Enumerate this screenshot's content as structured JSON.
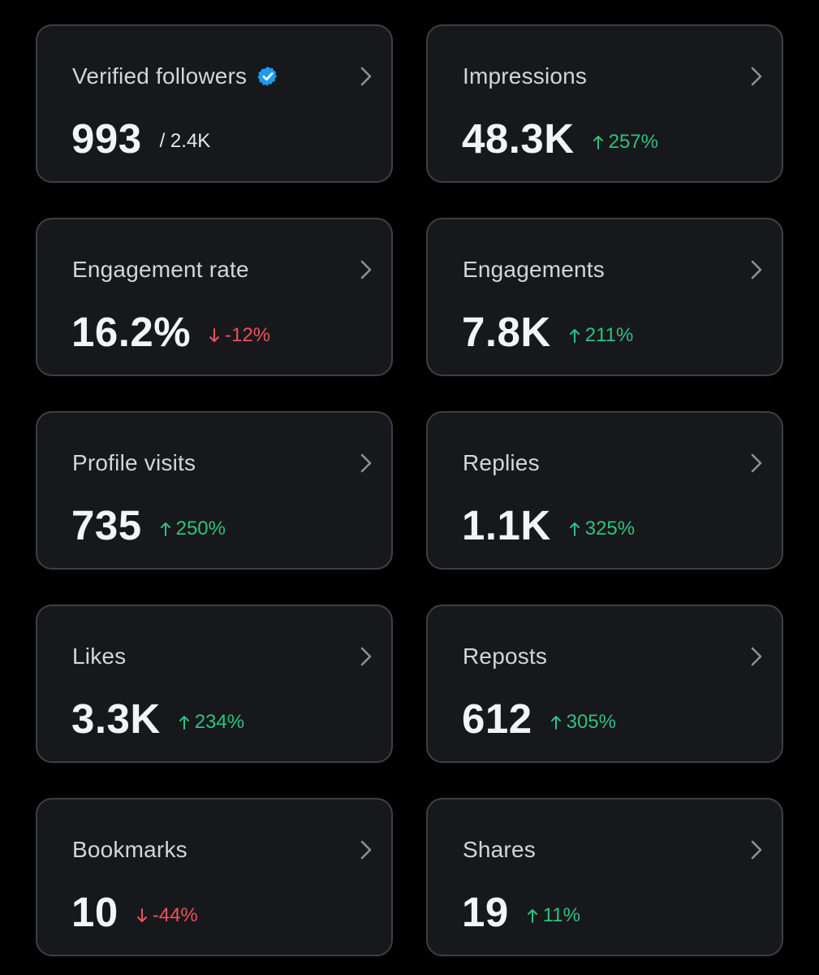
{
  "colors": {
    "background": "#000000",
    "card": "#16181c",
    "card_border": "#3c4044",
    "label": "#d2d6da",
    "value": "#f2f4f6",
    "positive": "#2ec27e",
    "negative": "#f0515c",
    "verified_badge": "#1d9bf0"
  },
  "cards": [
    {
      "label": "Verified followers",
      "value": "993",
      "total": "/ 2.4K",
      "icon": "verified-badge-icon"
    },
    {
      "label": "Impressions",
      "value": "48.3K",
      "change": "257%",
      "direction": "up"
    },
    {
      "label": "Engagement rate",
      "value": "16.2%",
      "change": "-12%",
      "direction": "down"
    },
    {
      "label": "Engagements",
      "value": "7.8K",
      "change": "211%",
      "direction": "up"
    },
    {
      "label": "Profile visits",
      "value": "735",
      "change": "250%",
      "direction": "up"
    },
    {
      "label": "Replies",
      "value": "1.1K",
      "change": "325%",
      "direction": "up"
    },
    {
      "label": "Likes",
      "value": "3.3K",
      "change": "234%",
      "direction": "up"
    },
    {
      "label": "Reposts",
      "value": "612",
      "change": "305%",
      "direction": "up"
    },
    {
      "label": "Bookmarks",
      "value": "10",
      "change": "-44%",
      "direction": "down"
    },
    {
      "label": "Shares",
      "value": "19",
      "change": "11%",
      "direction": "up"
    }
  ]
}
